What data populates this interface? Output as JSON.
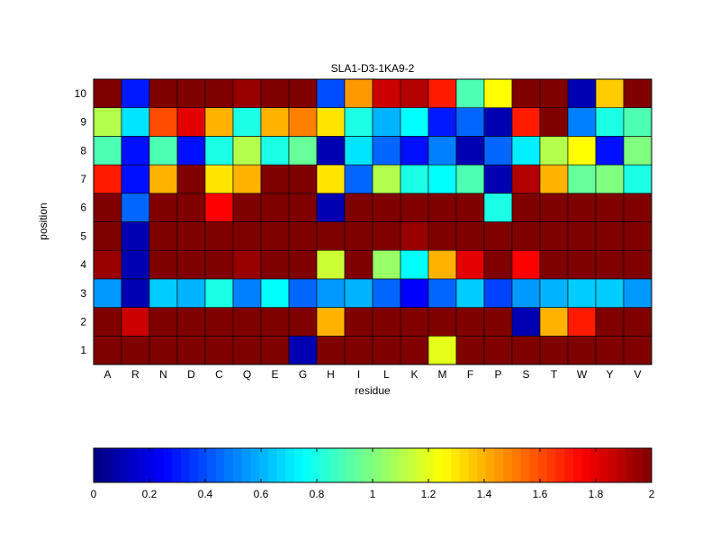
{
  "chart_data": {
    "type": "heatmap",
    "title": "SLA1-D3-1KA9-2",
    "xlabel": "residue",
    "ylabel": "position",
    "x_categories": [
      "A",
      "R",
      "N",
      "D",
      "C",
      "Q",
      "E",
      "G",
      "H",
      "I",
      "L",
      "K",
      "M",
      "F",
      "P",
      "S",
      "T",
      "W",
      "Y",
      "V"
    ],
    "y_categories": [
      "1",
      "2",
      "3",
      "4",
      "5",
      "6",
      "7",
      "8",
      "9",
      "10"
    ],
    "colormap": "jet",
    "clim": [
      0,
      2
    ],
    "colorbar": {
      "placement": "bottom",
      "ticks": [
        "0",
        "0.2",
        "0.4",
        "0.6",
        "0.8",
        "1",
        "1.2",
        "1.4",
        "1.6",
        "1.8",
        "2"
      ],
      "tick_values": [
        0,
        0.2,
        0.4,
        0.6,
        0.8,
        1,
        1.2,
        1.4,
        1.6,
        1.8,
        2
      ]
    },
    "values_by_position": {
      "1": [
        2,
        2,
        2,
        2,
        2,
        2,
        2,
        0.1,
        2,
        2,
        2,
        2,
        1.2,
        2,
        2,
        2,
        2,
        2,
        2,
        2
      ],
      "2": [
        2,
        1.85,
        2,
        2,
        2,
        2,
        2,
        2,
        1.4,
        2,
        2,
        2,
        2,
        2,
        2,
        0.1,
        1.4,
        1.7,
        2,
        2
      ],
      "3": [
        0.55,
        0.1,
        0.65,
        0.6,
        0.8,
        0.5,
        0.75,
        0.45,
        0.55,
        0.6,
        0.45,
        0.25,
        0.45,
        0.65,
        0.38,
        0.55,
        0.6,
        0.65,
        0.65,
        0.55
      ],
      "4": [
        1.95,
        0.1,
        2,
        2,
        2,
        1.95,
        2,
        2,
        1.15,
        2,
        1.05,
        0.75,
        1.4,
        1.8,
        2,
        1.75,
        2,
        2,
        2,
        2
      ],
      "5": [
        2,
        0.1,
        2,
        2,
        2,
        2,
        2,
        2,
        2,
        2,
        2,
        1.95,
        2,
        2,
        2,
        2,
        2,
        2,
        2,
        2
      ],
      "6": [
        2,
        0.45,
        2,
        2,
        1.75,
        2,
        2,
        2,
        0.1,
        2,
        2,
        2,
        2,
        2,
        0.8,
        2,
        2,
        2,
        2,
        2
      ],
      "7": [
        1.7,
        0.28,
        1.4,
        2,
        1.3,
        1.4,
        2,
        2,
        1.3,
        0.45,
        1.1,
        0.8,
        0.75,
        0.9,
        0.1,
        1.9,
        1.4,
        0.95,
        1.0,
        0.8
      ],
      "8": [
        0.9,
        0.28,
        0.9,
        0.28,
        0.8,
        1.1,
        0.8,
        0.95,
        0.1,
        0.7,
        0.45,
        0.28,
        0.5,
        0.1,
        0.45,
        0.72,
        1.1,
        1.25,
        0.28,
        1.0
      ],
      "9": [
        1.1,
        0.7,
        1.6,
        1.8,
        1.4,
        0.8,
        1.4,
        1.5,
        1.3,
        0.8,
        0.6,
        0.75,
        0.3,
        0.45,
        0.1,
        1.7,
        2,
        0.5,
        0.8,
        0.9
      ],
      "10": [
        2,
        0.3,
        2,
        2,
        2,
        1.95,
        2,
        2,
        0.4,
        1.45,
        1.85,
        1.9,
        1.7,
        0.9,
        1.25,
        2,
        2,
        0.1,
        1.35,
        2
      ]
    }
  }
}
